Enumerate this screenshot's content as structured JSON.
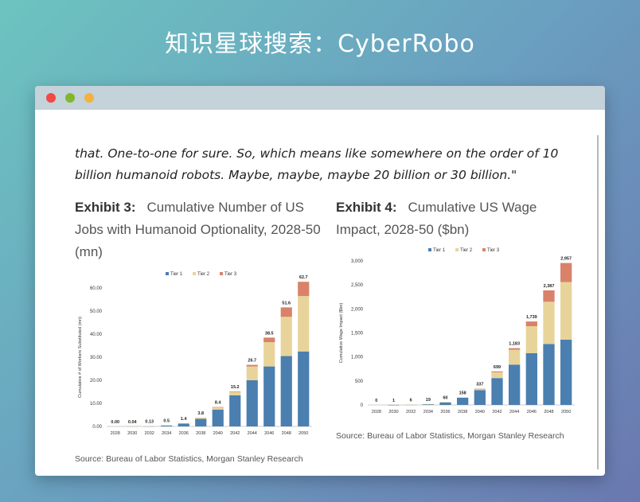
{
  "banner": {
    "text": "知识星球搜索：CyberRobo"
  },
  "document": {
    "quote": "that. One-to-one for sure. So, which means like somewhere on the order of 10 billion humanoid robots. Maybe, maybe, maybe 20 billion or 30 billion.\""
  },
  "exhibit3": {
    "label": "Exhibit 3:",
    "title": "Cumulative Number of US Jobs with Humanoid Optionality, 2028-50 (mn)",
    "source": "Source: Bureau of Labor Statistics, Morgan Stanley Research"
  },
  "exhibit4": {
    "label": "Exhibit 4:",
    "title": "Cumulative US Wage Impact, 2028-50 ($bn)",
    "source": "Source: Bureau of Labor Statistics, Morgan Stanley Research"
  },
  "colors": {
    "tier1": "#4a7fb0",
    "tier2": "#e8d49a",
    "tier3": "#d9826a"
  },
  "chart_data": [
    {
      "type": "bar",
      "stacked": true,
      "ylabel": "Cumulative # of Workers Substituted (mn)",
      "ylim": [
        0,
        60
      ],
      "yticks": [
        "0.00",
        "10.00",
        "20.00",
        "30.00",
        "40.00",
        "50.00",
        "60.00"
      ],
      "categories": [
        "2028",
        "2030",
        "2032",
        "2034",
        "2036",
        "2038",
        "2040",
        "2042",
        "2044",
        "2046",
        "2048",
        "2050"
      ],
      "series": [
        {
          "name": "Tier 1",
          "values": [
            0,
            0.02,
            0.1,
            0.4,
            1.2,
            3.3,
            7.3,
            13.5,
            20,
            26,
            30.5,
            32.5
          ]
        },
        {
          "name": "Tier 2",
          "values": [
            0,
            0.02,
            0.03,
            0.1,
            0.2,
            0.5,
            1.0,
            1.5,
            6.0,
            10.5,
            17.0,
            24.0
          ]
        },
        {
          "name": "Tier 3",
          "values": [
            0,
            0,
            0,
            0,
            0,
            0,
            0.1,
            0.2,
            0.7,
            2.0,
            4.1,
            6.2
          ]
        }
      ],
      "totals": [
        "0.00",
        "0.04",
        "0.13",
        "0.5",
        "1.4",
        "3.8",
        "8.4",
        "15.2",
        "26.7",
        "38.5",
        "51.6",
        "62.7"
      ],
      "legend": "top"
    },
    {
      "type": "bar",
      "stacked": true,
      "ylabel": "Cumulative Wage Impact ($bn)",
      "ylim": [
        0,
        3000
      ],
      "yticks": [
        "0",
        "500",
        "1,000",
        "1,500",
        "2,000",
        "2,500",
        "3,000"
      ],
      "categories": [
        "2028",
        "2030",
        "2032",
        "2034",
        "2036",
        "2038",
        "2040",
        "2042",
        "2044",
        "2046",
        "2048",
        "2050"
      ],
      "series": [
        {
          "name": "Tier 1",
          "values": [
            0,
            1,
            5,
            17,
            55,
            150,
            310,
            560,
            840,
            1080,
            1270,
            1360
          ]
        },
        {
          "name": "Tier 2",
          "values": [
            0,
            0,
            1,
            2,
            5,
            8,
            24,
            120,
            310,
            560,
            880,
            1200
          ]
        },
        {
          "name": "Tier 3",
          "values": [
            0,
            0,
            0,
            0,
            0,
            0,
            3,
            19,
            33,
            99,
            237,
            397
          ]
        }
      ],
      "totals": [
        "0",
        "1",
        "6",
        "19",
        "60",
        "158",
        "337",
        "699",
        "1,183",
        "1,739",
        "2,387",
        "2,957"
      ],
      "legend": "top"
    }
  ]
}
